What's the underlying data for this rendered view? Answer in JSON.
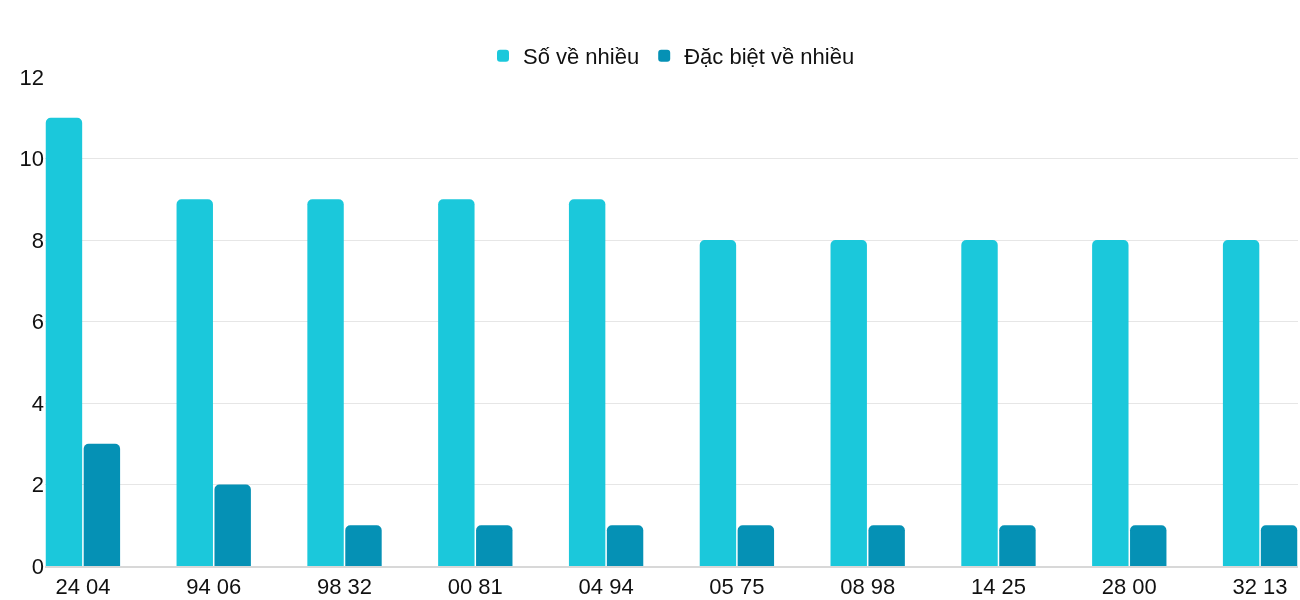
{
  "chart_data": {
    "type": "bar",
    "categories": [
      "24 04",
      "94 06",
      "98 32",
      "00 81",
      "04 94",
      "05 75",
      "08 98",
      "14 25",
      "28 00",
      "32 13"
    ],
    "series": [
      {
        "name": "Số về nhiều",
        "color": "#1bc8db",
        "values": [
          11,
          9,
          9,
          9,
          9,
          8,
          8,
          8,
          8,
          8
        ]
      },
      {
        "name": "Đặc biệt về nhiều",
        "color": "#0591b5",
        "values": [
          3,
          2,
          1,
          1,
          1,
          1,
          1,
          1,
          1,
          1
        ]
      }
    ],
    "ylim": [
      0,
      12
    ],
    "yticks": [
      0,
      2,
      4,
      6,
      8,
      10,
      12
    ],
    "grid": "y",
    "legend": "top"
  }
}
